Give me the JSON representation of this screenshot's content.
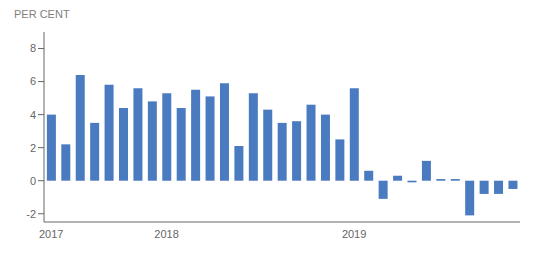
{
  "chart_data": {
    "type": "bar",
    "ylabel": "PER CENT",
    "categories": [
      "2017",
      null,
      null,
      null,
      null,
      null,
      null,
      null,
      "2018",
      null,
      null,
      null,
      null,
      null,
      null,
      null,
      null,
      null,
      null,
      null,
      null,
      "2019",
      null,
      null,
      null,
      null,
      null,
      null,
      null,
      null,
      null,
      null,
      null
    ],
    "values": [
      4.0,
      2.2,
      6.4,
      3.5,
      5.8,
      4.4,
      5.6,
      4.8,
      5.3,
      4.4,
      5.5,
      5.1,
      5.9,
      2.1,
      5.3,
      4.3,
      3.5,
      3.6,
      4.6,
      4.0,
      2.5,
      5.6,
      0.6,
      -1.1,
      0.3,
      -0.1,
      1.2,
      0.1,
      0.1,
      -2.1,
      -0.8,
      -0.8,
      -0.5
    ],
    "color": "#4a7abf",
    "ylim": [
      -2.5,
      9.0
    ],
    "yticks": [
      -2,
      0,
      2,
      4,
      6,
      8
    ]
  }
}
